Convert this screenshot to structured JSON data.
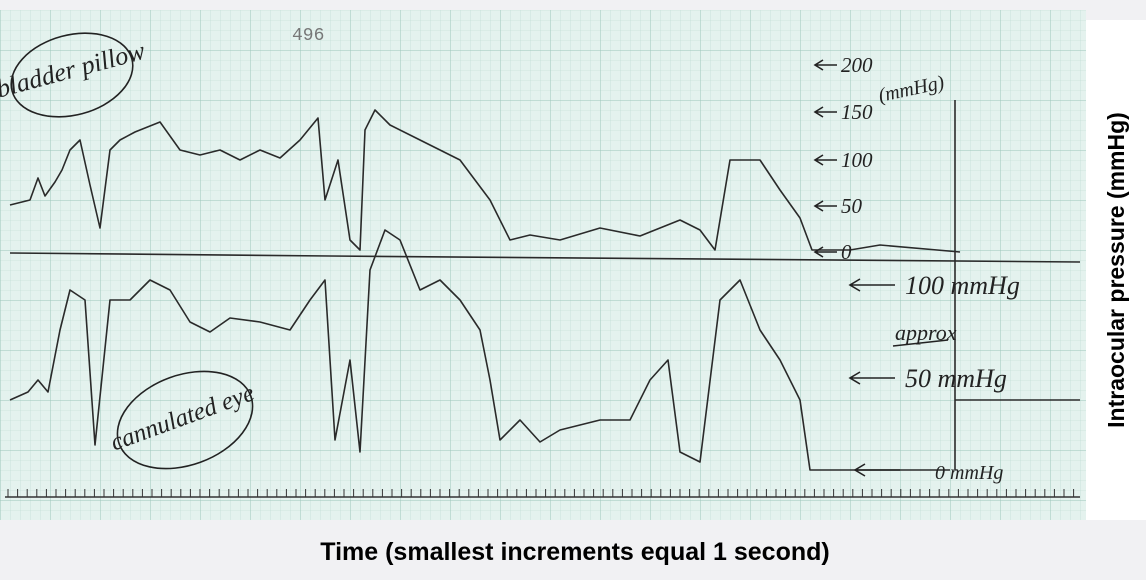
{
  "header": {
    "page_number": "496"
  },
  "labels": {
    "bladder": "bladder pillow",
    "eye": "cannulated eye"
  },
  "scale_upper": {
    "ticks": [
      "200",
      "150",
      "100",
      "50",
      "0"
    ],
    "unit": "(mmHg)"
  },
  "scale_lower": {
    "note": "approx",
    "ticks": [
      "100 mmHg",
      "50 mmHg",
      "0 mmHg"
    ]
  },
  "axes": {
    "x_label": "Time (smallest increments equal 1 second)",
    "y_label": "Intraocular pressure (mmHg)"
  }
}
